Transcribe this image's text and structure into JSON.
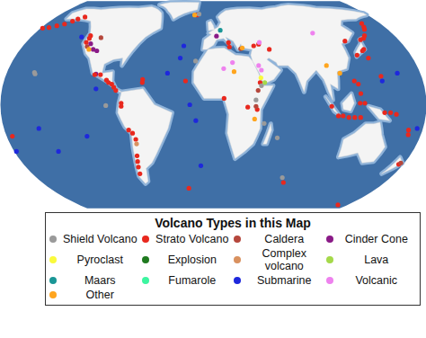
{
  "chart_data": {
    "type": "map",
    "tick_labels": false,
    "legend_title": "Volcano Types in this Map",
    "series": [
      {
        "name": "Shield Volcano",
        "color": "#9a9a9a"
      },
      {
        "name": "Strato Volcano",
        "color": "#e8281e"
      },
      {
        "name": "Caldera",
        "color": "#b5473c"
      },
      {
        "name": "Cinder Cone",
        "color": "#8a1a87"
      },
      {
        "name": "Pyroclast",
        "color": "#fafa3c"
      },
      {
        "name": "Explosion",
        "color": "#1f7a1f"
      },
      {
        "name": "Complex volcano",
        "color": "#d9915f"
      },
      {
        "name": "Lava",
        "color": "#a5d94a"
      },
      {
        "name": "Maars",
        "color": "#1a9696"
      },
      {
        "name": "Fumarole",
        "color": "#3cf5a0"
      },
      {
        "name": "Submarine",
        "color": "#1e28dc"
      },
      {
        "name": "Volcanic",
        "color": "#ee82ee"
      },
      {
        "name": "Other",
        "color": "#ffa51e"
      }
    ],
    "land": [
      [
        [
          -168,
          66
        ],
        [
          -160,
          71
        ],
        [
          -140,
          70
        ],
        [
          -120,
          72
        ],
        [
          -95,
          72
        ],
        [
          -80,
          74
        ],
        [
          -62,
          66
        ],
        [
          -55,
          52
        ],
        [
          -67,
          45
        ],
        [
          -75,
          35
        ],
        [
          -81,
          25
        ],
        [
          -82,
          30
        ],
        [
          -90,
          29
        ],
        [
          -97,
          26
        ],
        [
          -97,
          20
        ],
        [
          -88,
          21
        ],
        [
          -87,
          15
        ],
        [
          -83,
          10
        ],
        [
          -78,
          8
        ],
        [
          -80,
          8
        ],
        [
          -86,
          12
        ],
        [
          -92,
          15
        ],
        [
          -105,
          20
        ],
        [
          -112,
          30
        ],
        [
          -117,
          33
        ],
        [
          -124,
          40
        ],
        [
          -124,
          48
        ],
        [
          -135,
          58
        ],
        [
          -150,
          60
        ],
        [
          -165,
          60
        ],
        [
          -168,
          66
        ]
      ],
      [
        [
          -45,
          60
        ],
        [
          -20,
          70
        ],
        [
          -20,
          82
        ],
        [
          -60,
          82
        ],
        [
          -72,
          77
        ],
        [
          -55,
          68
        ],
        [
          -45,
          60
        ]
      ],
      [
        [
          -78,
          8
        ],
        [
          -60,
          10
        ],
        [
          -50,
          0
        ],
        [
          -35,
          -5
        ],
        [
          -39,
          -15
        ],
        [
          -48,
          -27
        ],
        [
          -58,
          -38
        ],
        [
          -65,
          -42
        ],
        [
          -68,
          -52
        ],
        [
          -72,
          -54
        ],
        [
          -75,
          -48
        ],
        [
          -73,
          -37
        ],
        [
          -71,
          -18
        ],
        [
          -76,
          -14
        ],
        [
          -81,
          -5
        ],
        [
          -80,
          1
        ],
        [
          -78,
          8
        ]
      ],
      [
        [
          -17,
          21
        ],
        [
          -10,
          30
        ],
        [
          -5,
          36
        ],
        [
          10,
          37
        ],
        [
          20,
          32
        ],
        [
          32,
          31
        ],
        [
          35,
          28
        ],
        [
          43,
          12
        ],
        [
          51,
          12
        ],
        [
          40,
          -3
        ],
        [
          40,
          -15
        ],
        [
          35,
          -25
        ],
        [
          20,
          -35
        ],
        [
          17,
          -29
        ],
        [
          12,
          -18
        ],
        [
          13,
          -6
        ],
        [
          9,
          4
        ],
        [
          -8,
          4
        ],
        [
          -17,
          14
        ],
        [
          -17,
          21
        ]
      ],
      [
        [
          -10,
          36
        ],
        [
          -9,
          43
        ],
        [
          -2,
          47
        ],
        [
          -5,
          48
        ],
        [
          5,
          53
        ],
        [
          8,
          57
        ],
        [
          5,
          62
        ],
        [
          15,
          69
        ],
        [
          30,
          71
        ],
        [
          60,
          70
        ],
        [
          80,
          73
        ],
        [
          100,
          77
        ],
        [
          130,
          72
        ],
        [
          160,
          70
        ],
        [
          179,
          66
        ],
        [
          179,
          64
        ],
        [
          160,
          60
        ],
        [
          142,
          59
        ],
        [
          135,
          54
        ],
        [
          140,
          48
        ],
        [
          130,
          42
        ],
        [
          122,
          40
        ],
        [
          122,
          30
        ],
        [
          117,
          23
        ],
        [
          108,
          21
        ],
        [
          106,
          10
        ],
        [
          100,
          13
        ],
        [
          101,
          3
        ],
        [
          98,
          8
        ],
        [
          95,
          16
        ],
        [
          90,
          22
        ],
        [
          80,
          15
        ],
        [
          77,
          8
        ],
        [
          72,
          20
        ],
        [
          66,
          25
        ],
        [
          57,
          25
        ],
        [
          56,
          27
        ],
        [
          50,
          30
        ],
        [
          48,
          29
        ],
        [
          56,
          24
        ],
        [
          59,
          22
        ],
        [
          52,
          16
        ],
        [
          43,
          13
        ],
        [
          40,
          20
        ],
        [
          35,
          28
        ],
        [
          34,
          32
        ],
        [
          36,
          36
        ],
        [
          27,
          37
        ],
        [
          26,
          40
        ],
        [
          23,
          36
        ],
        [
          19,
          42
        ],
        [
          12,
          45
        ],
        [
          16,
          39
        ],
        [
          10,
          44
        ],
        [
          3,
          43
        ],
        [
          0,
          39
        ],
        [
          -6,
          36
        ],
        [
          -10,
          36
        ]
      ],
      [
        [
          114,
          -22
        ],
        [
          122,
          -18
        ],
        [
          130,
          -12
        ],
        [
          137,
          -12
        ],
        [
          142,
          -11
        ],
        [
          146,
          -19
        ],
        [
          153,
          -27
        ],
        [
          150,
          -37
        ],
        [
          140,
          -38
        ],
        [
          131,
          -31
        ],
        [
          115,
          -34
        ],
        [
          114,
          -22
        ]
      ],
      [
        [
          -5,
          50
        ],
        [
          1,
          51
        ],
        [
          0,
          54
        ],
        [
          -3,
          58
        ],
        [
          -6,
          57
        ],
        [
          -5,
          50
        ]
      ],
      [
        [
          130,
          31
        ],
        [
          141,
          36
        ],
        [
          142,
          43
        ],
        [
          145,
          44
        ],
        [
          140,
          40
        ],
        [
          131,
          34
        ],
        [
          130,
          31
        ]
      ],
      [
        [
          95,
          5
        ],
        [
          106,
          -6
        ],
        [
          102,
          -4
        ],
        [
          95,
          5
        ]
      ],
      [
        [
          109,
          1
        ],
        [
          117,
          7
        ],
        [
          119,
          1
        ],
        [
          116,
          -4
        ],
        [
          110,
          -3
        ],
        [
          109,
          1
        ]
      ],
      [
        [
          131,
          -1
        ],
        [
          141,
          -3
        ],
        [
          150,
          -10
        ],
        [
          141,
          -9
        ],
        [
          131,
          -1
        ]
      ],
      [
        [
          172,
          -34
        ],
        [
          178,
          -38
        ],
        [
          167,
          -46
        ],
        [
          172,
          -34
        ]
      ],
      [
        [
          44,
          -25
        ],
        [
          49,
          -12
        ],
        [
          50,
          -16
        ],
        [
          47,
          -25
        ],
        [
          44,
          -25
        ]
      ]
    ],
    "points": [
      [
        -178,
        52,
        "Strato Volcano"
      ],
      [
        -172,
        52.5,
        "Strato Volcano"
      ],
      [
        -166,
        54,
        "Strato Volcano"
      ],
      [
        -160,
        55.5,
        "Strato Volcano"
      ],
      [
        -155,
        58,
        "Strato Volcano"
      ],
      [
        -152,
        60,
        "Strato Volcano"
      ],
      [
        -147,
        62,
        "Strato Volcano"
      ],
      [
        -122,
        46,
        "Strato Volcano"
      ],
      [
        -121.5,
        44,
        "Strato Volcano"
      ],
      [
        -122,
        41,
        "Strato Volcano"
      ],
      [
        -119,
        38,
        "Caldera"
      ],
      [
        -110.5,
        44.5,
        "Caldera"
      ],
      [
        -112,
        36,
        "Cinder Cone"
      ],
      [
        -108,
        35,
        "Cinder Cone"
      ],
      [
        -117,
        40,
        "Cinder Cone"
      ],
      [
        -116,
        36,
        "Other"
      ],
      [
        -102,
        19.5,
        "Cinder Cone"
      ],
      [
        -103,
        19,
        "Strato Volcano"
      ],
      [
        -98,
        19,
        "Strato Volcano"
      ],
      [
        -92,
        15.5,
        "Strato Volcano"
      ],
      [
        -90,
        14,
        "Strato Volcano"
      ],
      [
        -87,
        13,
        "Strato Volcano"
      ],
      [
        -85,
        11,
        "Strato Volcano"
      ],
      [
        -83,
        9,
        "Strato Volcano"
      ],
      [
        -78,
        1,
        "Strato Volcano"
      ],
      [
        -78,
        -1,
        "Strato Volcano"
      ],
      [
        -73,
        -16,
        "Strato Volcano"
      ],
      [
        -70,
        -18,
        "Strato Volcano"
      ],
      [
        -68,
        -22,
        "Strato Volcano"
      ],
      [
        -68,
        -25,
        "Complex volcano"
      ],
      [
        -70,
        -33,
        "Strato Volcano"
      ],
      [
        -71,
        -37,
        "Strato Volcano"
      ],
      [
        -72,
        -41,
        "Strato Volcano"
      ],
      [
        -73,
        -46,
        "Strato Volcano"
      ],
      [
        -61,
        16,
        "Strato Volcano"
      ],
      [
        -61,
        14,
        "Strato Volcano"
      ],
      [
        -155,
        19.5,
        "Shield Volcano"
      ],
      [
        -156,
        20.5,
        "Shield Volcano"
      ],
      [
        -91,
        -0.5,
        "Shield Volcano"
      ],
      [
        -19,
        64,
        "Strato Volcano"
      ],
      [
        -17,
        65,
        "Shield Volcano"
      ],
      [
        -22,
        64,
        "Other"
      ],
      [
        -28,
        38.5,
        "Submarine"
      ],
      [
        -16,
        28,
        "Shield Volcano"
      ],
      [
        -24,
        15,
        "Strato Volcano"
      ],
      [
        -30,
        30,
        "Submarine"
      ],
      [
        -40,
        20,
        "Submarine"
      ],
      [
        -15,
        -10,
        "Submarine"
      ],
      [
        -12,
        -40,
        "Submarine"
      ],
      [
        -20,
        0,
        "Submarine"
      ],
      [
        15,
        37.7,
        "Strato Volcano"
      ],
      [
        14.4,
        40.8,
        "Strato Volcano"
      ],
      [
        25.4,
        36.4,
        "Caldera"
      ],
      [
        27,
        37,
        "Other"
      ],
      [
        3,
        45.7,
        "Cinder Cone"
      ],
      [
        7,
        50.3,
        "Maars"
      ],
      [
        38,
        38.5,
        "Strato Volcano"
      ],
      [
        43,
        39.7,
        "Strato Volcano"
      ],
      [
        44,
        41,
        "Volcanic"
      ],
      [
        52,
        36,
        "Strato Volcano"
      ],
      [
        40,
        25,
        "Volcanic"
      ],
      [
        42,
        22,
        "Volcanic"
      ],
      [
        44,
        14,
        "Lava"
      ],
      [
        41,
        17,
        "Pyroclast"
      ],
      [
        40,
        14,
        "Strato Volcano"
      ],
      [
        41,
        12,
        "Shield Volcano"
      ],
      [
        38,
        9,
        "Caldera"
      ],
      [
        36,
        3,
        "Shield Volcano"
      ],
      [
        37,
        -3,
        "Strato Volcano"
      ],
      [
        29,
        -1.5,
        "Strato Volcano"
      ],
      [
        36,
        -1,
        "Caldera"
      ],
      [
        35,
        -9,
        "Other"
      ],
      [
        9,
        4,
        "Strato Volcano"
      ],
      [
        18,
        21,
        "Other"
      ],
      [
        9,
        23,
        "Volcanic"
      ],
      [
        17,
        27,
        "Volcanic"
      ],
      [
        55.7,
        -21,
        "Shield Volcano"
      ],
      [
        43.3,
        -11.8,
        "Shield Volcano"
      ],
      [
        158,
        53,
        "Strato Volcano"
      ],
      [
        160,
        56,
        "Strato Volcano"
      ],
      [
        156,
        51,
        "Strato Volcano"
      ],
      [
        150,
        46,
        "Strato Volcano"
      ],
      [
        147,
        44,
        "Strato Volcano"
      ],
      [
        140,
        36,
        "Strato Volcano"
      ],
      [
        138,
        35,
        "Strato Volcano"
      ],
      [
        131,
        32,
        "Strato Volcano"
      ],
      [
        143,
        43,
        "Strato Volcano"
      ],
      [
        140,
        30,
        "Strato Volcano"
      ],
      [
        145,
        18,
        "Strato Volcano"
      ],
      [
        145,
        15,
        "Submarine"
      ],
      [
        121,
        15,
        "Strato Volcano"
      ],
      [
        124,
        13,
        "Strato Volcano"
      ],
      [
        125,
        7,
        "Strato Volcano"
      ],
      [
        100,
        -1,
        "Strato Volcano"
      ],
      [
        106,
        -7,
        "Strato Volcano"
      ],
      [
        110,
        -7,
        "Strato Volcano"
      ],
      [
        115,
        -8,
        "Strato Volcano"
      ],
      [
        120,
        -8,
        "Strato Volcano"
      ],
      [
        125,
        -8,
        "Strato Volcano"
      ],
      [
        128,
        1,
        "Strato Volcano"
      ],
      [
        124,
        1,
        "Strato Volcano"
      ],
      [
        145,
        -5,
        "Strato Volcano"
      ],
      [
        150,
        -5,
        "Strato Volcano"
      ],
      [
        155,
        -6,
        "Strato Volcano"
      ],
      [
        168,
        -16,
        "Strato Volcano"
      ],
      [
        169,
        -19,
        "Strato Volcano"
      ],
      [
        -175,
        -20,
        "Strato Volcano"
      ],
      [
        175.5,
        -39,
        "Strato Volcano"
      ],
      [
        176.5,
        -38,
        "Caldera"
      ],
      [
        -178,
        -30,
        "Submarine"
      ],
      [
        127,
        42,
        "Strato Volcano"
      ],
      [
        110,
        20,
        "Other"
      ],
      [
        100,
        25,
        "Other"
      ],
      [
        100,
        48,
        "Volcanic"
      ],
      [
        -27,
        -58,
        "Strato Volcano"
      ],
      [
        167,
        -77.5,
        "Strato Volcano"
      ],
      [
        70,
        -49,
        "Shield Volcano"
      ],
      [
        73.5,
        -53,
        "Strato Volcano"
      ],
      [
        -130,
        45,
        "Submarine"
      ],
      [
        -110,
        -20,
        "Submarine"
      ],
      [
        -140,
        -30,
        "Submarine"
      ],
      [
        160,
        20,
        "Submarine"
      ],
      [
        -150,
        -15,
        "Submarine"
      ],
      [
        175,
        -15,
        "Submarine"
      ],
      [
        -100,
        10,
        "Submarine"
      ]
    ]
  }
}
